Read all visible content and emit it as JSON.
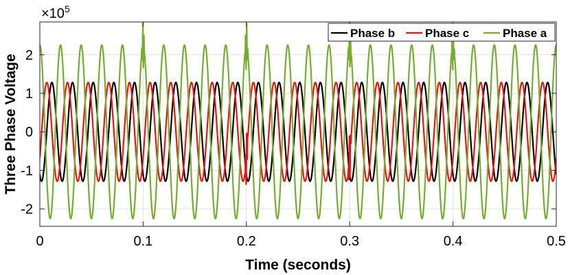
{
  "chart_data": {
    "type": "line",
    "title": "",
    "xlabel": "Time (seconds)",
    "ylabel": "Three Phase Voltage",
    "y_multiplier_label": "×10",
    "y_multiplier_exponent": "5",
    "xlim": [
      0,
      0.5
    ],
    "ylim": [
      -2.45,
      2.85
    ],
    "x_ticks": [
      0,
      0.1,
      0.2,
      0.3,
      0.4,
      0.5
    ],
    "x_tick_labels": [
      "0",
      "0.1",
      "0.2",
      "0.3",
      "0.4",
      "0.5"
    ],
    "y_ticks": [
      2,
      1,
      0,
      -1,
      -2
    ],
    "y_tick_labels": [
      "2",
      "1",
      "0",
      "-1",
      "-2"
    ],
    "grid": true,
    "legend_position": "top-right",
    "frequency_hz": 50,
    "series": [
      {
        "name": "Phase b",
        "color": "#000000",
        "amplitude": 1.28,
        "phase_deg": -120,
        "visible_behind": true
      },
      {
        "name": "Phase c",
        "color": "#e8150f",
        "amplitude": 1.28,
        "phase_deg": -32,
        "disturbances": [
          0.2,
          0.3
        ]
      },
      {
        "name": "Phase a",
        "color": "#77ac30",
        "amplitude": 2.25,
        "phase_deg": 90,
        "disturbances": [
          0.1,
          0.2,
          0.3,
          0.4
        ]
      }
    ]
  }
}
